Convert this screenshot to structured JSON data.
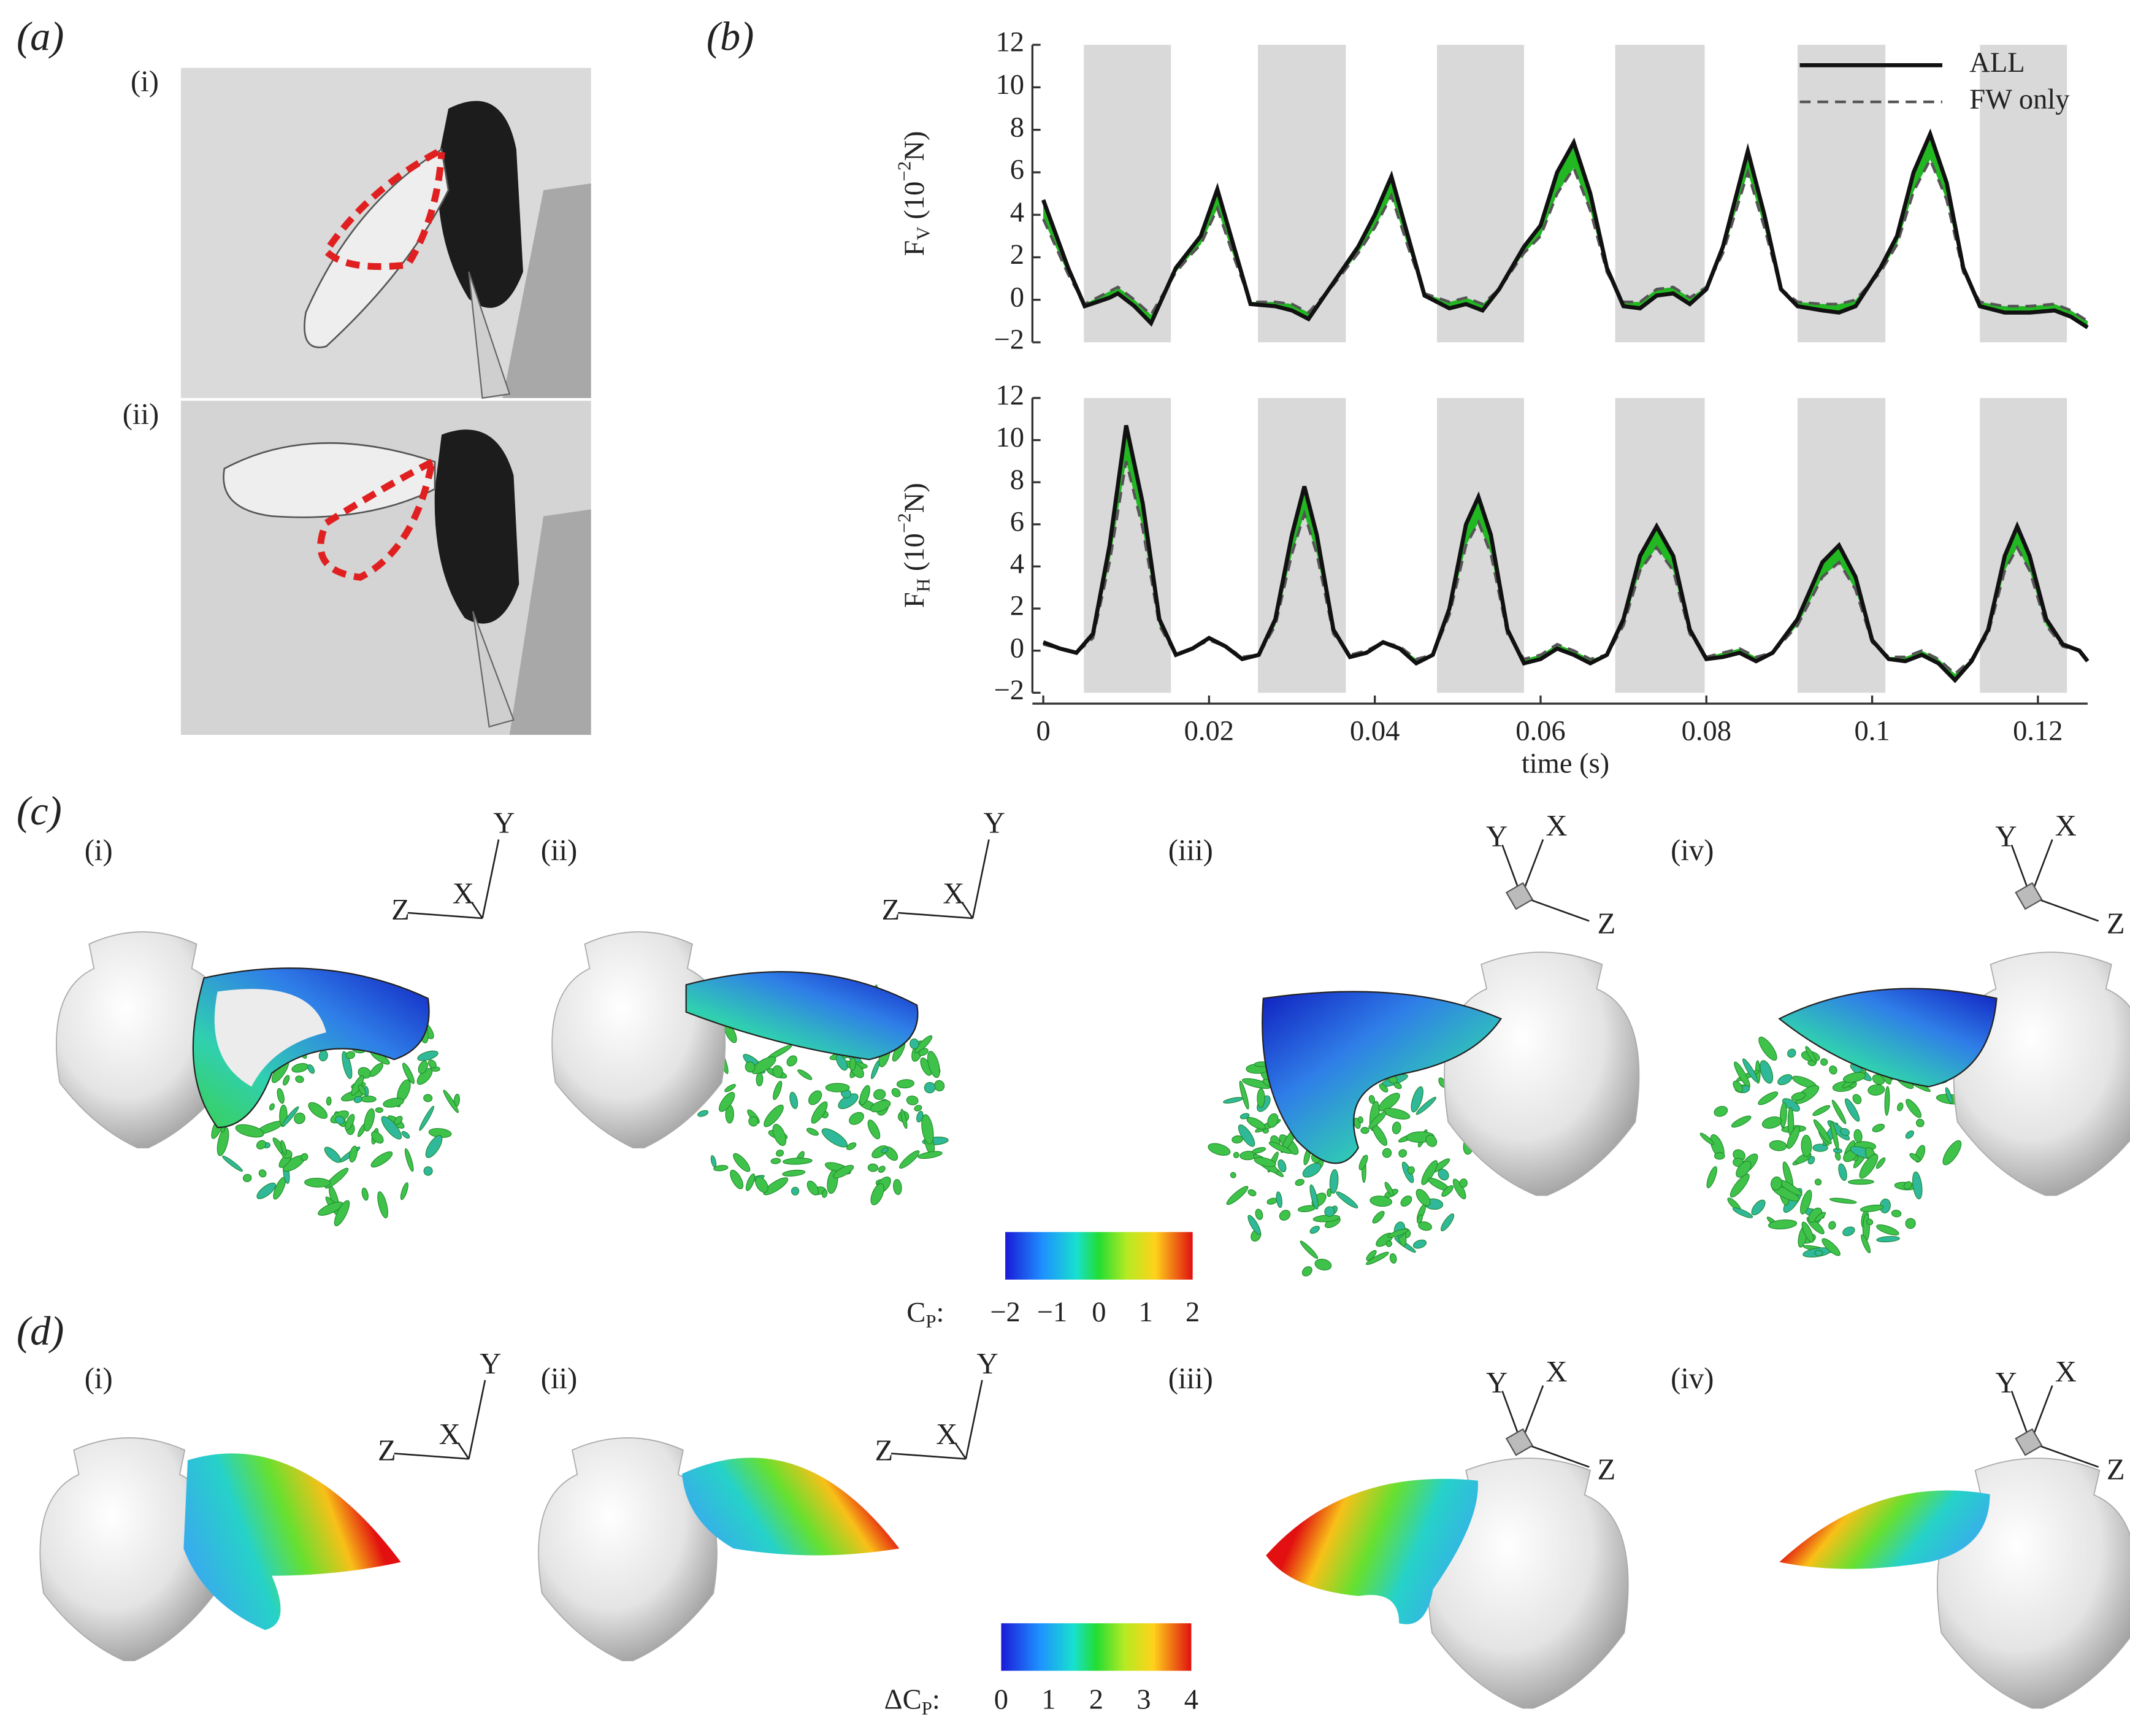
{
  "panel_labels": [
    "(a)",
    "(b)",
    "(c)",
    "(d)"
  ],
  "sub_labels": [
    "(i)",
    "(ii)",
    "(iii)",
    "(iv)"
  ],
  "triad_labels": [
    "X",
    "Y",
    "Z"
  ],
  "chart_data": [
    {
      "type": "line",
      "ylabel": {
        "main": "F",
        "sub": "V",
        "unit_pre": " (10",
        "sup": "−2",
        "unit_post": "N)"
      },
      "x": [
        0,
        0.003,
        0.005,
        0.008,
        0.009,
        0.011,
        0.013,
        0.016,
        0.018,
        0.019,
        0.021,
        0.023,
        0.025,
        0.028,
        0.03,
        0.032,
        0.035,
        0.038,
        0.04,
        0.042,
        0.044,
        0.046,
        0.049,
        0.051,
        0.053,
        0.055,
        0.058,
        0.06,
        0.062,
        0.064,
        0.066,
        0.068,
        0.07,
        0.072,
        0.074,
        0.076,
        0.078,
        0.08,
        0.082,
        0.085,
        0.087,
        0.089,
        0.091,
        0.094,
        0.096,
        0.098,
        0.101,
        0.103,
        0.105,
        0.107,
        0.109,
        0.111,
        0.113,
        0.116,
        0.119,
        0.122,
        0.124,
        0.126
      ],
      "series": [
        {
          "name": "ALL",
          "color": "#111111",
          "linestyle": "solid",
          "values": [
            4.7,
            1.5,
            -0.3,
            0.1,
            0.3,
            -0.3,
            -1.1,
            1.5,
            2.5,
            3.0,
            5.2,
            2.5,
            -0.2,
            -0.3,
            -0.5,
            -0.9,
            0.8,
            2.5,
            4.0,
            5.8,
            3.0,
            0.2,
            -0.4,
            -0.2,
            -0.5,
            0.5,
            2.5,
            3.5,
            6.0,
            7.4,
            5.0,
            1.5,
            -0.3,
            -0.4,
            0.2,
            0.3,
            -0.2,
            0.5,
            2.5,
            7.0,
            4.0,
            0.5,
            -0.3,
            -0.5,
            -0.6,
            -0.3,
            1.5,
            3.0,
            6.0,
            7.8,
            5.5,
            1.5,
            -0.3,
            -0.6,
            -0.6,
            -0.5,
            -0.8,
            -1.3
          ]
        },
        {
          "name": "FW only",
          "color": "#555555",
          "linestyle": "dashed",
          "values": [
            3.8,
            1.2,
            -0.2,
            0.4,
            0.6,
            0.0,
            -0.7,
            1.3,
            2.2,
            2.6,
            4.3,
            2.0,
            -0.1,
            -0.1,
            -0.2,
            -0.6,
            0.7,
            2.2,
            3.4,
            4.9,
            2.5,
            0.3,
            -0.1,
            0.1,
            -0.2,
            0.5,
            2.2,
            3.0,
            5.0,
            6.2,
            4.2,
            1.3,
            -0.1,
            -0.1,
            0.5,
            0.6,
            0.1,
            0.6,
            2.2,
            6.0,
            3.4,
            0.5,
            -0.1,
            -0.2,
            -0.2,
            0.0,
            1.3,
            2.6,
            5.1,
            6.6,
            4.7,
            1.3,
            -0.1,
            -0.3,
            -0.3,
            -0.2,
            -0.5,
            -1.0
          ]
        }
      ],
      "fill_between_color": "#22b822",
      "shaded": [
        [
          0.0049,
          0.0154
        ],
        [
          0.0259,
          0.0365
        ],
        [
          0.0475,
          0.058
        ],
        [
          0.069,
          0.0798
        ],
        [
          0.091,
          0.1016
        ],
        [
          0.113,
          0.1235
        ]
      ],
      "shade_color": "#d9d9d9",
      "xlim": [
        0,
        0.126
      ],
      "ylim": [
        -2,
        12
      ],
      "yticks": [
        {
          "value": -2,
          "label": "−2"
        },
        0,
        2,
        4,
        6,
        8,
        10,
        12
      ],
      "legend": "upper right"
    },
    {
      "type": "line",
      "ylabel": {
        "main": "F",
        "sub": "H",
        "unit_pre": " (10",
        "sup": "−2",
        "unit_post": "N)"
      },
      "xlabel": "time (s)",
      "x": [
        0,
        0.002,
        0.004,
        0.006,
        0.008,
        0.01,
        0.012,
        0.014,
        0.016,
        0.018,
        0.02,
        0.022,
        0.024,
        0.026,
        0.028,
        0.03,
        0.0315,
        0.033,
        0.035,
        0.037,
        0.039,
        0.041,
        0.043,
        0.045,
        0.047,
        0.049,
        0.051,
        0.0525,
        0.054,
        0.056,
        0.058,
        0.06,
        0.062,
        0.064,
        0.066,
        0.068,
        0.07,
        0.072,
        0.074,
        0.076,
        0.078,
        0.08,
        0.082,
        0.084,
        0.086,
        0.088,
        0.091,
        0.094,
        0.096,
        0.098,
        0.1,
        0.102,
        0.104,
        0.106,
        0.108,
        0.11,
        0.112,
        0.114,
        0.116,
        0.1175,
        0.119,
        0.121,
        0.123,
        0.125,
        0.126
      ],
      "series": [
        {
          "name": "ALL",
          "color": "#111111",
          "linestyle": "solid",
          "values": [
            0.4,
            0.1,
            -0.1,
            0.8,
            5.0,
            10.7,
            7.0,
            1.5,
            -0.2,
            0.1,
            0.6,
            0.2,
            -0.4,
            -0.2,
            1.5,
            5.5,
            7.8,
            5.5,
            1.0,
            -0.3,
            -0.1,
            0.4,
            0.1,
            -0.6,
            -0.2,
            2.0,
            6.0,
            7.3,
            5.5,
            1.0,
            -0.6,
            -0.4,
            0.1,
            -0.2,
            -0.6,
            -0.2,
            1.5,
            4.5,
            5.9,
            4.5,
            1.0,
            -0.4,
            -0.3,
            -0.1,
            -0.5,
            -0.1,
            1.5,
            4.2,
            5.0,
            3.5,
            0.5,
            -0.4,
            -0.5,
            -0.2,
            -0.6,
            -1.4,
            -0.5,
            1.0,
            4.5,
            5.9,
            4.5,
            1.5,
            0.3,
            0.0,
            -0.5
          ]
        },
        {
          "name": "FW only",
          "color": "#555555",
          "linestyle": "dashed",
          "values": [
            0.3,
            0.1,
            -0.1,
            0.6,
            4.2,
            9.0,
            5.8,
            1.2,
            -0.2,
            0.1,
            0.5,
            0.2,
            -0.3,
            -0.2,
            1.2,
            4.6,
            6.5,
            4.6,
            0.8,
            -0.2,
            0.0,
            0.4,
            0.2,
            -0.4,
            -0.2,
            1.7,
            5.0,
            6.1,
            4.6,
            0.8,
            -0.4,
            -0.2,
            0.3,
            0.0,
            -0.4,
            -0.2,
            1.2,
            3.8,
            4.9,
            3.8,
            0.8,
            -0.3,
            -0.1,
            0.1,
            -0.3,
            -0.1,
            1.2,
            3.5,
            4.2,
            2.9,
            0.4,
            -0.3,
            -0.3,
            0.0,
            -0.4,
            -1.1,
            -0.4,
            0.8,
            3.8,
            4.9,
            3.8,
            1.2,
            0.2,
            0.0,
            -0.4
          ]
        }
      ],
      "fill_between_color": "#22b822",
      "shaded": [
        [
          0.0049,
          0.0154
        ],
        [
          0.0259,
          0.0365
        ],
        [
          0.0475,
          0.058
        ],
        [
          0.069,
          0.0798
        ],
        [
          0.091,
          0.1016
        ],
        [
          0.113,
          0.1235
        ]
      ],
      "shade_color": "#d9d9d9",
      "xlim": [
        0,
        0.126
      ],
      "xticks": [
        0,
        0.02,
        0.04,
        0.06,
        0.08,
        0.1,
        0.12
      ],
      "ylim": [
        -2,
        12
      ],
      "yticks": [
        {
          "value": -2,
          "label": "−2"
        },
        0,
        2,
        4,
        6,
        8,
        10,
        12
      ]
    }
  ],
  "colorbars": [
    {
      "label_pre": "",
      "label": "C",
      "label_sub": "P",
      "label_end": ":",
      "lim": [
        -2,
        2
      ],
      "ticks": [
        {
          "value": -2,
          "label": "−2"
        },
        {
          "value": -1,
          "label": "−1"
        },
        0,
        1,
        2
      ]
    },
    {
      "label_pre": "Δ",
      "label": "C",
      "label_sub": "P",
      "label_end": ":",
      "lim": [
        0,
        4
      ],
      "ticks": [
        0,
        1,
        2,
        3,
        4
      ]
    }
  ]
}
